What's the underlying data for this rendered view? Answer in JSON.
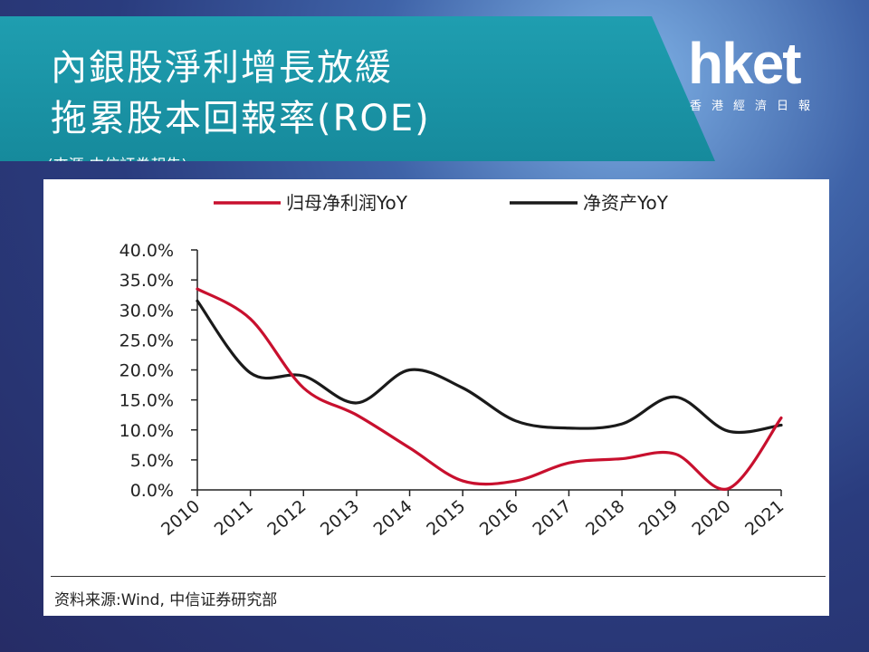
{
  "header": {
    "title_line1": "內銀股淨利增長放緩",
    "title_line2": "拖累股本回報率(ROE)",
    "subtitle": "(來源:中信証券報告)"
  },
  "logo": {
    "word": "hket",
    "sub": "香港經濟日報"
  },
  "source_note": "资料来源:Wind, 中信证券研究部",
  "colors": {
    "banner": "#1a95a7",
    "series_red": "#c8102e",
    "series_black": "#1a1a1a"
  },
  "chart_data": {
    "type": "line",
    "title": "",
    "xlabel": "",
    "ylabel": "",
    "x": [
      "2010",
      "2011",
      "2012",
      "2013",
      "2014",
      "2015",
      "2016",
      "2017",
      "2018",
      "2019",
      "2020",
      "2021"
    ],
    "y_ticks": [
      "0.0%",
      "5.0%",
      "10.0%",
      "15.0%",
      "20.0%",
      "25.0%",
      "30.0%",
      "35.0%",
      "40.0%"
    ],
    "ylim": [
      0,
      40
    ],
    "grid": false,
    "legend_position": "top",
    "series": [
      {
        "name": "归母净利润YoY",
        "color": "#c8102e",
        "values": [
          33.5,
          28.5,
          17.0,
          12.5,
          7.0,
          1.5,
          1.5,
          4.5,
          5.2,
          6.0,
          0.2,
          12.0
        ]
      },
      {
        "name": "净资产YoY",
        "color": "#1a1a1a",
        "values": [
          31.5,
          19.5,
          19.0,
          14.5,
          20.0,
          17.0,
          11.5,
          10.3,
          11.0,
          15.5,
          9.8,
          10.8
        ]
      }
    ]
  }
}
